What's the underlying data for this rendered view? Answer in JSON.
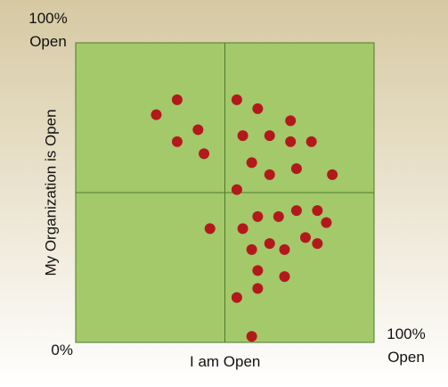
{
  "chart_data": {
    "type": "scatter",
    "x_label": "I am Open",
    "y_label": "My Organization is Open",
    "xlim": [
      0,
      100
    ],
    "ylim": [
      0,
      100
    ],
    "xticks": [
      {
        "value": 100,
        "label": "100% Open"
      }
    ],
    "yticks": [
      {
        "value": 0,
        "label": "0%"
      },
      {
        "value": 100,
        "label": "100% Open"
      }
    ],
    "x_divider": 50,
    "y_divider": 50,
    "color": "#b3191c",
    "background": "#a3c96a",
    "x": [
      27,
      34,
      41,
      34,
      43,
      54,
      61,
      72,
      56,
      65,
      72,
      79,
      59,
      74,
      65,
      86,
      54,
      74,
      81,
      61,
      68,
      84,
      45,
      56,
      77,
      81,
      65,
      59,
      70,
      61,
      70,
      61,
      54,
      59
    ],
    "y": [
      76,
      81,
      71,
      67,
      63,
      81,
      78,
      74,
      69,
      69,
      67,
      67,
      60,
      58,
      56,
      56,
      51,
      44,
      44,
      42,
      42,
      40,
      38,
      38,
      35,
      33,
      33,
      31,
      31,
      24,
      22,
      18,
      15,
      2
    ]
  }
}
